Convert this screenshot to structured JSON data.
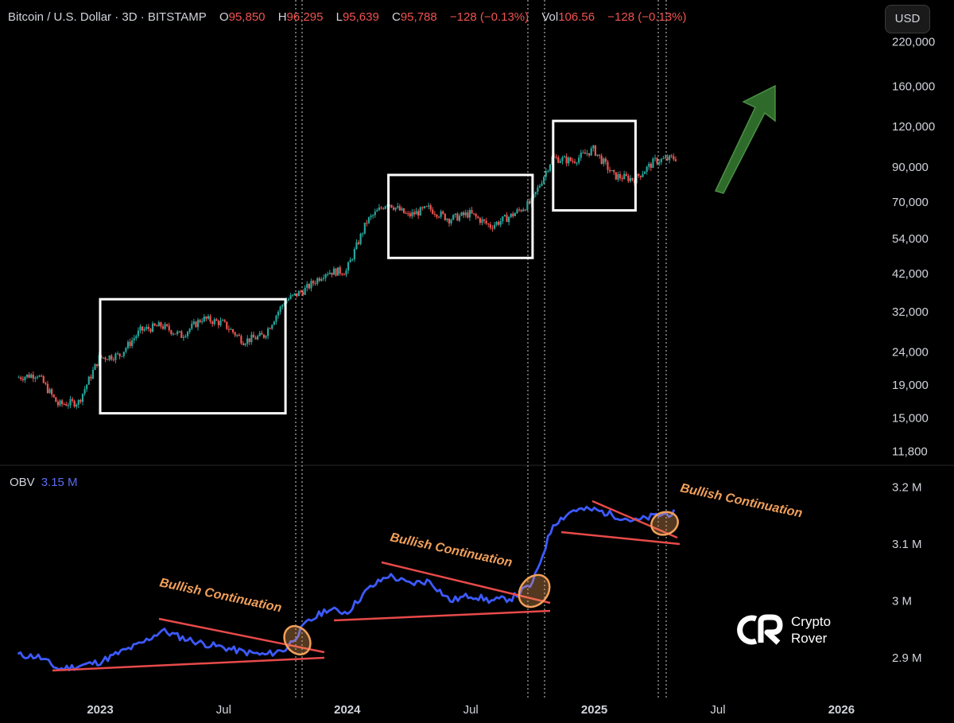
{
  "header": {
    "title": "Bitcoin / U.S. Dollar · 3D · BITSTAMP",
    "open_label": "O",
    "open": "95,850",
    "high_label": "H",
    "high": "96,295",
    "low_label": "L",
    "low": "95,639",
    "close_label": "C",
    "close": "95,788",
    "change": "−128 (−0.13%)",
    "vol_label": "Vol",
    "vol": "106.56",
    "vol_change": "−128 (−0.13%)"
  },
  "currency_button": "USD",
  "obv_header": {
    "label": "OBV",
    "value": "3.15 M"
  },
  "logo": {
    "line1": "Crypto",
    "line2": "Rover"
  },
  "colors": {
    "up": "#26a69a",
    "down": "#ef5350",
    "obv_line": "#3d5afe",
    "trendline": "#e84a4a",
    "annotation": "#f2a05a",
    "arrow": "#2e6b2a",
    "box": "#ffffff"
  },
  "chart_data": [
    {
      "type": "candlestick",
      "title": "Bitcoin / U.S. Dollar · 3D · BITSTAMP",
      "y_scale": "log",
      "ylim": [
        11000,
        250000
      ],
      "y_ticks": [
        "220,000",
        "160,000",
        "120,000",
        "90,000",
        "70,000",
        "54,000",
        "42,000",
        "32,000",
        "24,000",
        "19,000",
        "15,000",
        "11,800"
      ],
      "x_ticks": [
        "2023",
        "Jul",
        "2024",
        "Jul",
        "2025",
        "Jul",
        "2026"
      ],
      "x": [
        "2022-09",
        "2022-10",
        "2022-11",
        "2022-12",
        "2023-01",
        "2023-02",
        "2023-03",
        "2023-04",
        "2023-05",
        "2023-06",
        "2023-07",
        "2023-08",
        "2023-09",
        "2023-10",
        "2023-11",
        "2023-12",
        "2024-01",
        "2024-02",
        "2024-03",
        "2024-04",
        "2024-05",
        "2024-06",
        "2024-07",
        "2024-08",
        "2024-09",
        "2024-10",
        "2024-11",
        "2024-12",
        "2025-01",
        "2025-02",
        "2025-03",
        "2025-04",
        "2025-05"
      ],
      "close": [
        20000,
        20500,
        16500,
        16800,
        23000,
        23500,
        28000,
        29000,
        27000,
        30500,
        29500,
        26000,
        27000,
        34500,
        37500,
        42500,
        42800,
        61000,
        70000,
        63500,
        67000,
        62000,
        64500,
        59000,
        63500,
        70000,
        96000,
        94000,
        102000,
        84500,
        82500,
        94000,
        96000
      ],
      "last_close": 95788,
      "consolidation_boxes": [
        {
          "from": "2023-01",
          "to": "2023-10",
          "price_low": 15500,
          "price_high": 35000
        },
        {
          "from": "2024-03",
          "to": "2024-10",
          "price_low": 47000,
          "price_high": 85000
        },
        {
          "from": "2024-11",
          "to": "2025-03",
          "price_low": 66000,
          "price_high": 125000
        }
      ],
      "arrow": {
        "direction": "up"
      }
    },
    {
      "type": "line",
      "title": "OBV",
      "value_label": "3.15 M",
      "ylim": [
        2.84,
        3.22
      ],
      "y_ticks": [
        "3.2 M",
        "3.1 M",
        "3 M",
        "2.9 M"
      ],
      "x": [
        "2022-09",
        "2022-10",
        "2022-11",
        "2022-12",
        "2023-01",
        "2023-02",
        "2023-03",
        "2023-04",
        "2023-05",
        "2023-06",
        "2023-07",
        "2023-08",
        "2023-09",
        "2023-10",
        "2023-11",
        "2023-12",
        "2024-01",
        "2024-02",
        "2024-03",
        "2024-04",
        "2024-05",
        "2024-06",
        "2024-07",
        "2024-08",
        "2024-09",
        "2024-10",
        "2024-11",
        "2024-12",
        "2025-01",
        "2025-02",
        "2025-03",
        "2025-04",
        "2025-05"
      ],
      "values": [
        2.905,
        2.902,
        2.88,
        2.886,
        2.893,
        2.91,
        2.925,
        2.948,
        2.935,
        2.925,
        2.918,
        2.91,
        2.905,
        2.915,
        2.96,
        2.985,
        2.98,
        3.02,
        3.045,
        3.03,
        3.035,
        3.0,
        3.01,
        3.0,
        3.005,
        3.03,
        3.135,
        3.16,
        3.16,
        3.15,
        3.14,
        3.15,
        3.155
      ],
      "annotations": [
        "Bullish Continuation",
        "Bullish Continuation",
        "Bullish Continuation"
      ]
    }
  ]
}
